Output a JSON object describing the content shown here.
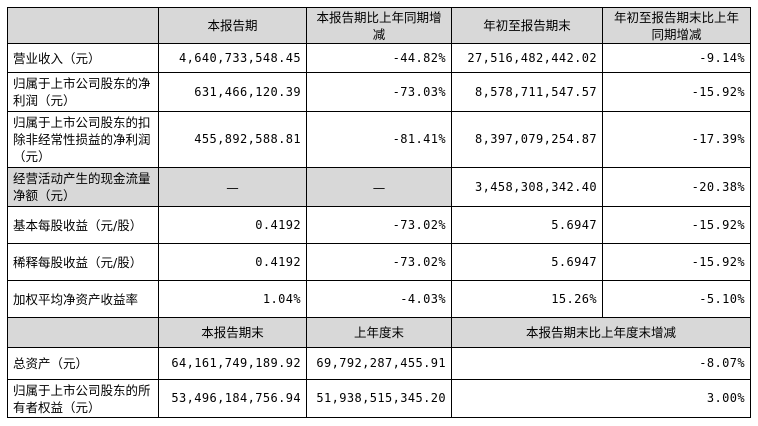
{
  "header1": {
    "col1": "本报告期",
    "col2": "本报告期比上年同期增减",
    "col3": "年初至报告期末",
    "col4": "年初至报告期末比上年同期增减"
  },
  "rows1": [
    {
      "label": "营业收入（元）",
      "v1": "4,640,733,548.45",
      "v2": "-44.82%",
      "v3": "27,516,482,442.02",
      "v4": "-9.14%"
    },
    {
      "label": "归属于上市公司股东的净利润（元）",
      "v1": "631,466,120.39",
      "v2": "-73.03%",
      "v3": "8,578,711,547.57",
      "v4": "-15.92%"
    },
    {
      "label": "归属于上市公司股东的扣除非经常性损益的净利润（元）",
      "v1": "455,892,588.81",
      "v2": "-81.41%",
      "v3": "8,397,079,254.87",
      "v4": "-17.39%"
    },
    {
      "label": "经营活动产生的现金流量净额（元）",
      "v1": "—",
      "v2": "—",
      "v3": "3,458,308,342.40",
      "v4": "-20.38%"
    },
    {
      "label": "基本每股收益（元/股）",
      "v1": "0.4192",
      "v2": "-73.02%",
      "v3": "5.6947",
      "v4": "-15.92%"
    },
    {
      "label": "稀释每股收益（元/股）",
      "v1": "0.4192",
      "v2": "-73.02%",
      "v3": "5.6947",
      "v4": "-15.92%"
    },
    {
      "label": "加权平均净资产收益率",
      "v1": "1.04%",
      "v2": "-4.03%",
      "v3": "15.26%",
      "v4": "-5.10%"
    }
  ],
  "header2": {
    "col1": "本报告期末",
    "col2": "上年度末",
    "col3": "本报告期末比上年度末增减"
  },
  "rows2": [
    {
      "label": "总资产（元）",
      "v1": "64,161,749,189.92",
      "v2": "69,792,287,455.91",
      "v3": "-8.07%"
    },
    {
      "label": "归属于上市公司股东的所有者权益（元）",
      "v1": "53,496,184,756.94",
      "v2": "51,938,515,345.20",
      "v3": "3.00%"
    }
  ]
}
